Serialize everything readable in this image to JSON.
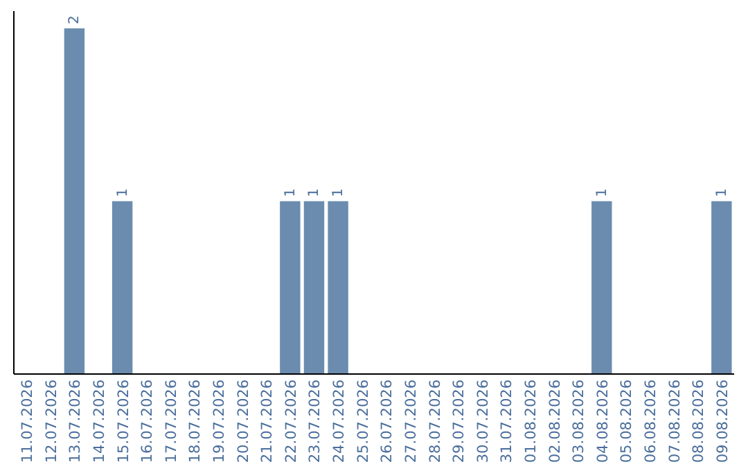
{
  "chart_data": {
    "type": "bar",
    "categories": [
      "11.07.2026",
      "12.07.2026",
      "13.07.2026",
      "14.07.2026",
      "15.07.2026",
      "16.07.2026",
      "17.07.2026",
      "18.07.2026",
      "19.07.2026",
      "20.07.2026",
      "21.07.2026",
      "22.07.2026",
      "23.07.2026",
      "24.07.2026",
      "25.07.2026",
      "26.07.2026",
      "27.07.2026",
      "28.07.2026",
      "29.07.2026",
      "30.07.2026",
      "31.07.2026",
      "01.08.2026",
      "02.08.2026",
      "03.08.2026",
      "04.08.2026",
      "05.08.2026",
      "06.08.2026",
      "07.08.2026",
      "08.08.2026",
      "09.08.2026"
    ],
    "values": [
      0,
      0,
      2,
      0,
      1,
      0,
      0,
      0,
      0,
      0,
      0,
      1,
      1,
      1,
      0,
      0,
      0,
      0,
      0,
      0,
      0,
      0,
      0,
      0,
      1,
      0,
      0,
      0,
      0,
      1
    ],
    "value_labels": [
      null,
      null,
      "2",
      null,
      "1",
      null,
      null,
      null,
      null,
      null,
      null,
      "1",
      "1",
      "1",
      null,
      null,
      null,
      null,
      null,
      null,
      null,
      null,
      null,
      null,
      "1",
      null,
      null,
      null,
      null,
      "1"
    ],
    "color": "#6b8cae",
    "tick_labels": "x"
  }
}
